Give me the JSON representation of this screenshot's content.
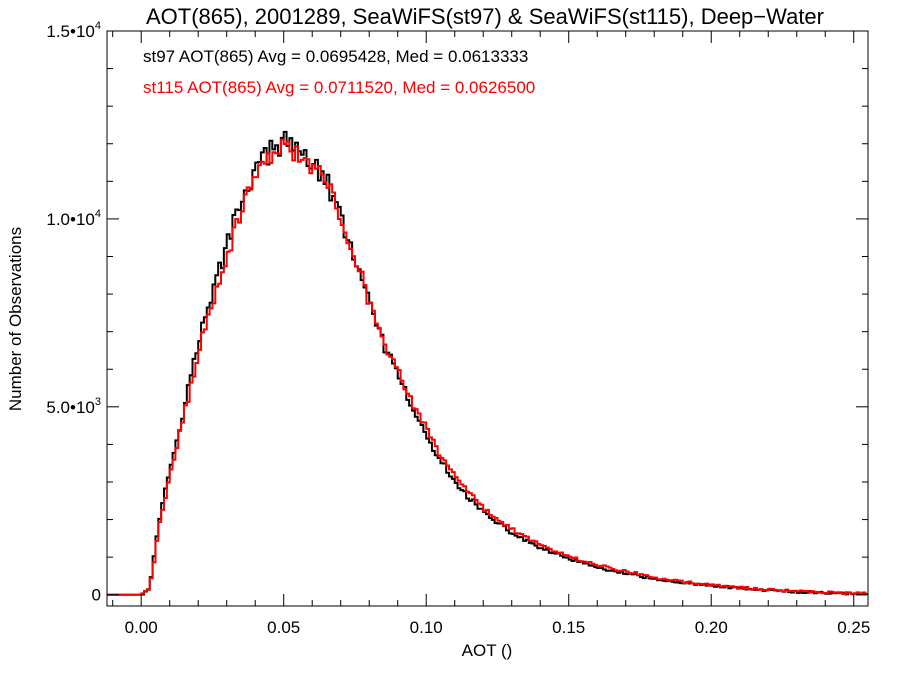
{
  "chart_data": {
    "type": "line",
    "title": "AOT(865), 2001289, SeaWiFS(st97) & SeaWiFS(st115), Deep−Water",
    "xlabel": "AOT ()",
    "ylabel": "Number of Observations",
    "xlim": [
      -0.012,
      0.255
    ],
    "ylim": [
      -300,
      15000
    ],
    "x_ticks": [
      {
        "value": 0.0,
        "label": "0.00"
      },
      {
        "value": 0.05,
        "label": "0.05"
      },
      {
        "value": 0.1,
        "label": "0.10"
      },
      {
        "value": 0.15,
        "label": "0.15"
      },
      {
        "value": 0.2,
        "label": "0.20"
      },
      {
        "value": 0.25,
        "label": "0.25"
      }
    ],
    "y_ticks": [
      {
        "value": 0,
        "mantissa": "0",
        "exponent": ""
      },
      {
        "value": 5000,
        "mantissa": "5.0•10",
        "exponent": "3"
      },
      {
        "value": 10000,
        "mantissa": "1.0•10",
        "exponent": "4"
      },
      {
        "value": 15000,
        "mantissa": "1.5•10",
        "exponent": "4"
      }
    ],
    "grid": false,
    "line_style": "step",
    "annotations": [
      {
        "text": "st97 AOT(865) Avg = 0.0695428, Med = 0.0613333",
        "color": "#000000"
      },
      {
        "text": "st115 AOT(865) Avg = 0.0711520, Med = 0.0626500",
        "color": "#ff0000"
      }
    ],
    "series": [
      {
        "color": "#000000",
        "x": [
          -0.012,
          0.0,
          0.003,
          0.005,
          0.007,
          0.01,
          0.015,
          0.02,
          0.025,
          0.03,
          0.035,
          0.04,
          0.045,
          0.05,
          0.055,
          0.06,
          0.065,
          0.07,
          0.075,
          0.08,
          0.085,
          0.09,
          0.095,
          0.1,
          0.105,
          0.11,
          0.115,
          0.12,
          0.125,
          0.13,
          0.14,
          0.15,
          0.16,
          0.17,
          0.18,
          0.19,
          0.2,
          0.21,
          0.22,
          0.23,
          0.24,
          0.25
        ],
        "y": [
          0,
          0,
          200,
          1300,
          2300,
          3300,
          5000,
          6700,
          8000,
          9300,
          10500,
          11300,
          11800,
          12000,
          11900,
          11500,
          11000,
          10000,
          9000,
          7700,
          6700,
          5800,
          5000,
          4200,
          3550,
          3000,
          2600,
          2200,
          1900,
          1650,
          1250,
          950,
          730,
          560,
          420,
          320,
          240,
          170,
          120,
          80,
          50,
          30
        ]
      },
      {
        "color": "#ff0000",
        "x": [
          -0.012,
          0.0,
          0.003,
          0.005,
          0.007,
          0.01,
          0.015,
          0.02,
          0.025,
          0.03,
          0.035,
          0.04,
          0.045,
          0.05,
          0.055,
          0.06,
          0.065,
          0.07,
          0.075,
          0.08,
          0.085,
          0.09,
          0.095,
          0.1,
          0.105,
          0.11,
          0.115,
          0.12,
          0.125,
          0.13,
          0.14,
          0.15,
          0.16,
          0.17,
          0.18,
          0.19,
          0.2,
          0.21,
          0.22,
          0.23,
          0.24,
          0.25
        ],
        "y": [
          0,
          0,
          150,
          1150,
          2150,
          3100,
          4750,
          6400,
          7750,
          9000,
          10200,
          11050,
          11550,
          11850,
          11800,
          11450,
          10950,
          10050,
          9050,
          7800,
          6850,
          5950,
          5150,
          4400,
          3700,
          3150,
          2750,
          2320,
          2000,
          1740,
          1330,
          1020,
          790,
          610,
          460,
          350,
          260,
          190,
          135,
          90,
          60,
          35
        ]
      }
    ]
  }
}
